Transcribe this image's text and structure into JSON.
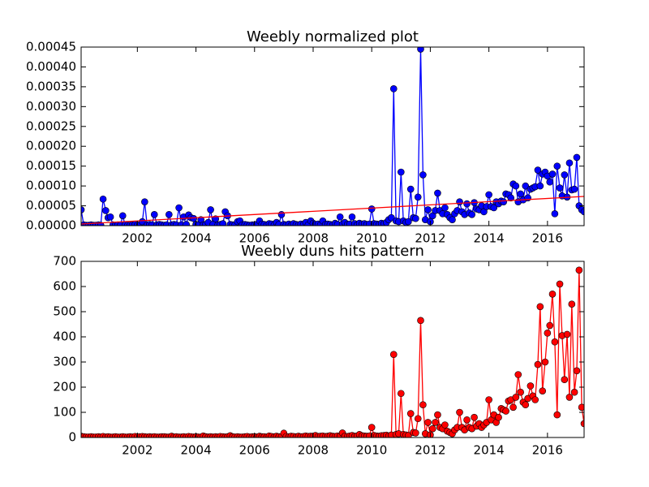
{
  "chart_data": [
    {
      "type": "line",
      "title": "Weebly normalized plot",
      "x": [
        2000.08,
        2000.17,
        2000.25,
        2000.33,
        2000.42,
        2000.5,
        2000.58,
        2000.67,
        2000.75,
        2000.83,
        2000.92,
        2001,
        2001.08,
        2001.17,
        2001.25,
        2001.33,
        2001.42,
        2001.5,
        2001.58,
        2001.67,
        2001.75,
        2001.83,
        2001.92,
        2002,
        2002.08,
        2002.17,
        2002.25,
        2002.33,
        2002.42,
        2002.5,
        2002.58,
        2002.67,
        2002.75,
        2002.83,
        2002.92,
        2003,
        2003.08,
        2003.17,
        2003.25,
        2003.33,
        2003.42,
        2003.5,
        2003.58,
        2003.67,
        2003.75,
        2003.83,
        2003.92,
        2004,
        2004.08,
        2004.17,
        2004.25,
        2004.33,
        2004.42,
        2004.5,
        2004.58,
        2004.67,
        2004.75,
        2004.83,
        2004.92,
        2005,
        2005.08,
        2005.17,
        2005.25,
        2005.33,
        2005.42,
        2005.5,
        2005.58,
        2005.67,
        2005.75,
        2005.83,
        2005.92,
        2006,
        2006.08,
        2006.17,
        2006.25,
        2006.33,
        2006.42,
        2006.5,
        2006.58,
        2006.67,
        2006.75,
        2006.83,
        2006.92,
        2007,
        2007.08,
        2007.17,
        2007.25,
        2007.33,
        2007.42,
        2007.5,
        2007.58,
        2007.67,
        2007.75,
        2007.83,
        2007.92,
        2008,
        2008.08,
        2008.17,
        2008.25,
        2008.33,
        2008.42,
        2008.5,
        2008.58,
        2008.67,
        2008.75,
        2008.83,
        2008.92,
        2009,
        2009.08,
        2009.17,
        2009.25,
        2009.33,
        2009.42,
        2009.5,
        2009.58,
        2009.67,
        2009.75,
        2009.83,
        2009.92,
        2010,
        2010.08,
        2010.17,
        2010.25,
        2010.33,
        2010.42,
        2010.5,
        2010.58,
        2010.67,
        2010.75,
        2010.83,
        2010.92,
        2011,
        2011.08,
        2011.17,
        2011.25,
        2011.33,
        2011.42,
        2011.5,
        2011.58,
        2011.67,
        2011.75,
        2011.83,
        2011.92,
        2012,
        2012.08,
        2012.17,
        2012.25,
        2012.33,
        2012.42,
        2012.5,
        2012.58,
        2012.67,
        2012.75,
        2012.83,
        2012.92,
        2013,
        2013.08,
        2013.17,
        2013.25,
        2013.33,
        2013.42,
        2013.5,
        2013.58,
        2013.67,
        2013.75,
        2013.83,
        2013.92,
        2014,
        2014.08,
        2014.17,
        2014.25,
        2014.33,
        2014.42,
        2014.5,
        2014.58,
        2014.67,
        2014.75,
        2014.83,
        2014.92,
        2015,
        2015.08,
        2015.17,
        2015.25,
        2015.33,
        2015.42,
        2015.5,
        2015.58,
        2015.67,
        2015.75,
        2015.83,
        2015.92,
        2016,
        2016.08,
        2016.17,
        2016.25,
        2016.33,
        2016.42,
        2016.5,
        2016.58,
        2016.67,
        2016.75,
        2016.83,
        2016.92,
        2017,
        2017.08,
        2017.17,
        2017.25
      ],
      "series": [
        {
          "color": "#0000ff",
          "marker": true,
          "values": [
            4e-05,
            2e-06,
            1e-06,
            1e-06,
            2e-06,
            1e-06,
            1e-06,
            2e-06,
            1e-06,
            6.7e-05,
            3.8e-05,
            2e-05,
            2.2e-05,
            2e-06,
            1e-06,
            2e-06,
            1e-06,
            2.5e-05,
            2e-06,
            1e-06,
            1e-06,
            2e-06,
            3e-06,
            1e-06,
            2e-06,
            1e-05,
            6e-05,
            2e-06,
            3e-06,
            2e-06,
            2.8e-05,
            2e-06,
            3e-06,
            2e-06,
            1e-06,
            2e-06,
            2.8e-05,
            2e-06,
            3e-06,
            2e-06,
            4.5e-05,
            2e-06,
            2.2e-05,
            3e-06,
            2.7e-05,
            2e-05,
            1.8e-05,
            3e-06,
            2e-06,
            1.5e-05,
            2e-06,
            3e-06,
            8e-06,
            4e-05,
            3e-06,
            1.7e-05,
            2e-06,
            3e-06,
            5e-06,
            3.5e-05,
            2.5e-05,
            3e-06,
            2e-06,
            2e-06,
            1e-05,
            1.2e-05,
            2e-06,
            3e-06,
            2e-06,
            1e-06,
            2e-06,
            2e-06,
            3e-06,
            1.2e-05,
            4e-06,
            3e-06,
            2e-06,
            5e-06,
            4e-06,
            2e-06,
            8e-06,
            3e-06,
            2.8e-05,
            3e-06,
            2e-06,
            4e-06,
            1e-06,
            5e-06,
            3e-06,
            2e-06,
            4e-06,
            3e-06,
            8e-06,
            2e-06,
            1.2e-05,
            6e-06,
            3e-06,
            4e-06,
            2e-06,
            1.2e-05,
            3e-06,
            4e-06,
            3e-06,
            2e-06,
            6e-06,
            3e-06,
            2.2e-05,
            4e-06,
            8e-06,
            3e-06,
            4e-06,
            2.2e-05,
            5e-06,
            2e-06,
            6e-06,
            4e-06,
            5e-06,
            3e-06,
            4e-06,
            4.2e-05,
            5e-06,
            4e-06,
            3e-06,
            6e-06,
            5e-06,
            8e-06,
            1.5e-05,
            2e-05,
            0.000345,
            1.2e-05,
            1e-05,
            0.000135,
            1.2e-05,
            8e-06,
            1e-05,
            9.2e-05,
            2e-05,
            1.8e-05,
            7.2e-05,
            0.000445,
            0.000128,
            1.5e-05,
            4e-05,
            1e-05,
            2.5e-05,
            3.8e-05,
            8.2e-05,
            3.8e-05,
            3e-05,
            4.5e-05,
            2.8e-05,
            2e-05,
            1.5e-05,
            3e-05,
            3.8e-05,
            6e-05,
            3.5e-05,
            2.8e-05,
            5.5e-05,
            3.2e-05,
            2.8e-05,
            5.8e-05,
            4.2e-05,
            4e-05,
            5e-05,
            3.5e-05,
            4.8e-05,
            7.8e-05,
            4.8e-05,
            4.5e-05,
            6e-05,
            5.5e-05,
            6.2e-05,
            6e-05,
            8e-05,
            7.8e-05,
            7e-05,
            0.000105,
            0.0001,
            6e-05,
            8e-05,
            6.5e-05,
            0.0001,
            7e-05,
            9.2e-05,
            9.5e-05,
            9.8e-05,
            0.00014,
            0.0001,
            0.00013,
            0.000135,
            0.000125,
            0.00011,
            0.00013,
            3e-05,
            0.00015,
            9.5e-05,
            7.5e-05,
            0.000128,
            7.2e-05,
            0.000158,
            9e-05,
            9.2e-05,
            0.000172,
            5e-05,
            4e-05,
            3.5e-05
          ]
        },
        {
          "color": "#ff0000",
          "marker": false,
          "x": [
            2000.08,
            2017.25
          ],
          "values": [
            4.1e-06,
            7.36e-05
          ]
        }
      ],
      "xlim": [
        2000.08,
        2017.25
      ],
      "xticks": [
        2002,
        2004,
        2006,
        2008,
        2010,
        2012,
        2014,
        2016
      ],
      "ylim": [
        0,
        0.00045
      ],
      "yticks": [
        {
          "value": 0,
          "label": "0.00000"
        },
        {
          "value": 5e-05,
          "label": "0.00005"
        },
        {
          "value": 0.0001,
          "label": "0.00010"
        },
        {
          "value": 0.00015,
          "label": "0.00015"
        },
        {
          "value": 0.0002,
          "label": "0.00020"
        },
        {
          "value": 0.00025,
          "label": "0.00025"
        },
        {
          "value": 0.0003,
          "label": "0.00030"
        },
        {
          "value": 0.00035,
          "label": "0.00035"
        },
        {
          "value": 0.0004,
          "label": "0.00040"
        },
        {
          "value": 0.00045,
          "label": "0.00045"
        }
      ]
    },
    {
      "type": "line",
      "title": "Weebly duns hits pattern",
      "x": [
        2000.08,
        2000.17,
        2000.25,
        2000.33,
        2000.42,
        2000.5,
        2000.58,
        2000.67,
        2000.75,
        2000.83,
        2000.92,
        2001,
        2001.08,
        2001.17,
        2001.25,
        2001.33,
        2001.42,
        2001.5,
        2001.58,
        2001.67,
        2001.75,
        2001.83,
        2001.92,
        2002,
        2002.08,
        2002.17,
        2002.25,
        2002.33,
        2002.42,
        2002.5,
        2002.58,
        2002.67,
        2002.75,
        2002.83,
        2002.92,
        2003,
        2003.08,
        2003.17,
        2003.25,
        2003.33,
        2003.42,
        2003.5,
        2003.58,
        2003.67,
        2003.75,
        2003.83,
        2003.92,
        2004,
        2004.08,
        2004.17,
        2004.25,
        2004.33,
        2004.42,
        2004.5,
        2004.58,
        2004.67,
        2004.75,
        2004.83,
        2004.92,
        2005,
        2005.08,
        2005.17,
        2005.25,
        2005.33,
        2005.42,
        2005.5,
        2005.58,
        2005.67,
        2005.75,
        2005.83,
        2005.92,
        2006,
        2006.08,
        2006.17,
        2006.25,
        2006.33,
        2006.42,
        2006.5,
        2006.58,
        2006.67,
        2006.75,
        2006.83,
        2006.92,
        2007,
        2007.08,
        2007.17,
        2007.25,
        2007.33,
        2007.42,
        2007.5,
        2007.58,
        2007.67,
        2007.75,
        2007.83,
        2007.92,
        2008,
        2008.08,
        2008.17,
        2008.25,
        2008.33,
        2008.42,
        2008.5,
        2008.58,
        2008.67,
        2008.75,
        2008.83,
        2008.92,
        2009,
        2009.08,
        2009.17,
        2009.25,
        2009.33,
        2009.42,
        2009.5,
        2009.58,
        2009.67,
        2009.75,
        2009.83,
        2009.92,
        2010,
        2010.08,
        2010.17,
        2010.25,
        2010.33,
        2010.42,
        2010.5,
        2010.58,
        2010.67,
        2010.75,
        2010.83,
        2010.92,
        2011,
        2011.08,
        2011.17,
        2011.25,
        2011.33,
        2011.42,
        2011.5,
        2011.58,
        2011.67,
        2011.75,
        2011.83,
        2011.92,
        2012,
        2012.08,
        2012.17,
        2012.25,
        2012.33,
        2012.42,
        2012.5,
        2012.58,
        2012.67,
        2012.75,
        2012.83,
        2012.92,
        2013,
        2013.08,
        2013.17,
        2013.25,
        2013.33,
        2013.42,
        2013.5,
        2013.58,
        2013.67,
        2013.75,
        2013.83,
        2013.92,
        2014,
        2014.08,
        2014.17,
        2014.25,
        2014.33,
        2014.42,
        2014.5,
        2014.58,
        2014.67,
        2014.75,
        2014.83,
        2014.92,
        2015,
        2015.08,
        2015.17,
        2015.25,
        2015.33,
        2015.42,
        2015.5,
        2015.58,
        2015.67,
        2015.75,
        2015.83,
        2015.92,
        2016,
        2016.08,
        2016.17,
        2016.25,
        2016.33,
        2016.42,
        2016.5,
        2016.58,
        2016.67,
        2016.75,
        2016.83,
        2016.92,
        2017,
        2017.08,
        2017.17,
        2017.25
      ],
      "series": [
        {
          "color": "#ff0000",
          "marker": true,
          "values": [
            5,
            3,
            2,
            2,
            3,
            2,
            2,
            3,
            2,
            4,
            2,
            3,
            2,
            2,
            3,
            2,
            2,
            3,
            2,
            2,
            3,
            2,
            4,
            2,
            3,
            4,
            3,
            2,
            3,
            2,
            3,
            2,
            2,
            3,
            3,
            2,
            2,
            5,
            2,
            3,
            2,
            2,
            3,
            2,
            4,
            3,
            2,
            3,
            2,
            2,
            6,
            3,
            2,
            3,
            2,
            3,
            2,
            4,
            3,
            2,
            3,
            7,
            3,
            2,
            3,
            2,
            2,
            3,
            4,
            2,
            3,
            3,
            2,
            5,
            3,
            3,
            2,
            6,
            4,
            3,
            5,
            3,
            4,
            17,
            4,
            3,
            5,
            4,
            3,
            5,
            3,
            4,
            6,
            4,
            5,
            5,
            8,
            4,
            5,
            6,
            4,
            5,
            7,
            5,
            4,
            6,
            5,
            18,
            5,
            4,
            6,
            8,
            5,
            6,
            12,
            7,
            6,
            5,
            6,
            40,
            8,
            6,
            5,
            7,
            8,
            9,
            6,
            10,
            330,
            12,
            15,
            175,
            12,
            10,
            8,
            95,
            20,
            18,
            75,
            465,
            130,
            15,
            60,
            10,
            35,
            60,
            90,
            40,
            35,
            50,
            25,
            20,
            15,
            30,
            40,
            100,
            40,
            30,
            70,
            40,
            35,
            80,
            45,
            55,
            40,
            50,
            60,
            150,
            70,
            90,
            60,
            80,
            115,
            110,
            105,
            145,
            150,
            120,
            160,
            250,
            180,
            140,
            130,
            155,
            205,
            165,
            150,
            290,
            520,
            185,
            300,
            415,
            445,
            570,
            380,
            90,
            610,
            405,
            230,
            410,
            160,
            530,
            180,
            265,
            665,
            120,
            55
          ]
        }
      ],
      "xlim": [
        2000.08,
        2017.25
      ],
      "xticks": [
        2002,
        2004,
        2006,
        2008,
        2010,
        2012,
        2014,
        2016
      ],
      "ylim": [
        0,
        700
      ],
      "yticks": [
        0,
        100,
        200,
        300,
        400,
        500,
        600,
        700
      ]
    }
  ]
}
